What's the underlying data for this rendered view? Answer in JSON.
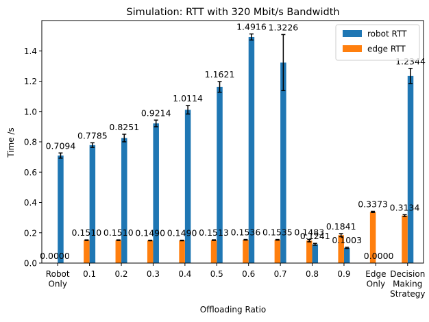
{
  "chart_data": {
    "type": "bar",
    "title": "Simulation: RTT with 320 Mbit/s Bandwidth",
    "xlabel": "Offloading Ratio",
    "ylabel": "Time /s",
    "ylim": [
      0,
      1.6
    ],
    "yticks": [
      "0.0",
      "0.2",
      "0.4",
      "0.6",
      "0.8",
      "1.0",
      "1.2",
      "1.4"
    ],
    "grid": false,
    "legend_position": "upper right",
    "categories": [
      [
        "Robot",
        "Only"
      ],
      [
        "0.1"
      ],
      [
        "0.2"
      ],
      [
        "0.3"
      ],
      [
        "0.4"
      ],
      [
        "0.5"
      ],
      [
        "0.6"
      ],
      [
        "0.7"
      ],
      [
        "0.8"
      ],
      [
        "0.9"
      ],
      [
        "Edge",
        "Only"
      ],
      [
        "Decision",
        "Making",
        "Strategy"
      ]
    ],
    "series": [
      {
        "name": "robot RTT",
        "color": "#1f77b4",
        "values": [
          0.7094,
          0.7785,
          0.8251,
          0.9214,
          1.0114,
          1.1621,
          1.4916,
          1.3226,
          0.1241,
          0.1003,
          0.0,
          1.2344
        ],
        "errors": [
          0.017,
          0.015,
          0.025,
          0.022,
          0.028,
          0.035,
          0.02,
          0.185,
          0.006,
          0.004,
          0.0,
          0.05
        ],
        "labels": [
          "0.7094",
          "0.7785",
          "0.8251",
          "0.9214",
          "1.0114",
          "1.1621",
          "1.4916",
          "1.3226",
          "0.1241",
          "0.1003",
          "0.0000",
          "1.2344"
        ]
      },
      {
        "name": "edge RTT",
        "color": "#ff7f0e",
        "values": [
          0.0,
          0.151,
          0.151,
          0.149,
          0.149,
          0.1513,
          0.1536,
          0.1535,
          0.1483,
          0.1841,
          0.3373,
          0.3134
        ],
        "errors": [
          0.0,
          0.002,
          0.002,
          0.002,
          0.002,
          0.002,
          0.002,
          0.002,
          0.008,
          0.01,
          0.004,
          0.006
        ],
        "labels": [
          "0.0000",
          "0.1510",
          "0.1510",
          "0.1490",
          "0.1490",
          "0.1513",
          "0.1536",
          "0.1535",
          "0.1483",
          "0.1841",
          "0.3373",
          "0.3134"
        ]
      }
    ]
  }
}
